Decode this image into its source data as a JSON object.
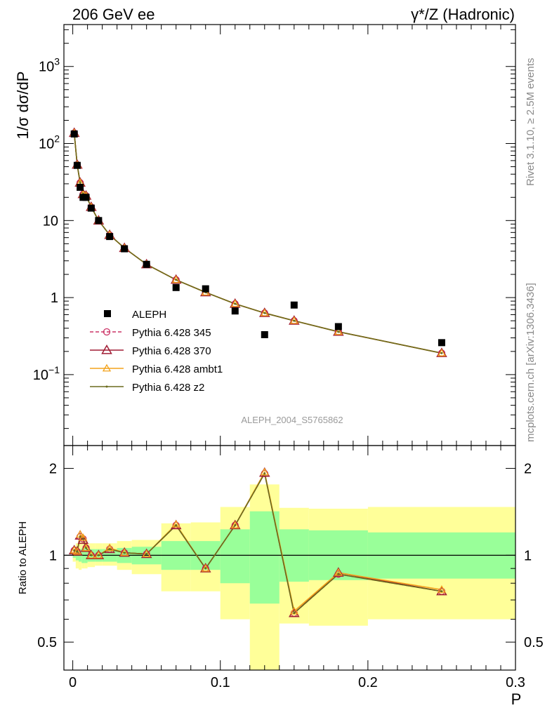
{
  "header": {
    "left": "206 GeV ee",
    "right": "γ*/Z (Hadronic)"
  },
  "side_labels": {
    "rivet": "Rivet 3.1.10, ≥ 2.5M events",
    "mcplots": "mcplots.cern.ch [arXiv:1306.3436]"
  },
  "analysis_id": "ALEPH_2004_S5765862",
  "colors": {
    "data": "#000000",
    "p345": "#cc3366",
    "p370": "#a01c34",
    "ambt1": "#f3a31c",
    "z2": "#6b6b1d",
    "band_stat": "#99ff99",
    "band_total": "#ffff99"
  },
  "chart_data": [
    {
      "type": "scatter",
      "title": "",
      "ylabel": "1/σ  dσ/dP",
      "ylabel_display": "1/σ  dσ/dP",
      "yscale": "log",
      "ylim": [
        0.012,
        3500
      ],
      "xlim": [
        -0.006,
        0.3
      ],
      "y_ticks": [
        {
          "value": 0.1,
          "label": "10",
          "exp": "−1"
        },
        {
          "value": 1,
          "label": "1",
          "exp": ""
        },
        {
          "value": 10,
          "label": "10",
          "exp": ""
        },
        {
          "value": 100,
          "label": "10",
          "exp": "2"
        },
        {
          "value": 1000,
          "label": "10",
          "exp": "3"
        }
      ],
      "legend_position": "lower-left",
      "legend": [
        {
          "key": "data",
          "label": "ALEPH"
        },
        {
          "key": "p345",
          "label": "Pythia 6.428 345"
        },
        {
          "key": "p370",
          "label": "Pythia 6.428 370"
        },
        {
          "key": "ambt1",
          "label": "Pythia 6.428 ambt1"
        },
        {
          "key": "z2",
          "label": "Pythia 6.428 z2"
        }
      ],
      "data_points": {
        "name": "ALEPH",
        "x": [
          0.001,
          0.003,
          0.005,
          0.007,
          0.009,
          0.0125,
          0.0175,
          0.025,
          0.035,
          0.05,
          0.07,
          0.09,
          0.11,
          0.13,
          0.15,
          0.18,
          0.25
        ],
        "y": [
          133,
          52,
          27,
          20,
          20,
          14.5,
          10,
          6.2,
          4.3,
          2.7,
          1.35,
          1.3,
          0.67,
          0.33,
          0.8,
          0.42,
          0.26
        ]
      },
      "series": [
        {
          "key": "p345",
          "name": "Pythia 6.428 345",
          "x": [
            0.001,
            0.003,
            0.005,
            0.007,
            0.009,
            0.0125,
            0.0175,
            0.025,
            0.035,
            0.05,
            0.07,
            0.09,
            0.11,
            0.13,
            0.15,
            0.18,
            0.25
          ],
          "y": [
            137,
            53,
            31,
            22,
            21,
            15,
            10,
            6.5,
            4.4,
            2.7,
            1.7,
            1.17,
            0.83,
            0.63,
            0.5,
            0.36,
            0.19
          ]
        },
        {
          "key": "p370",
          "name": "Pythia 6.428 370",
          "x": [
            0.001,
            0.003,
            0.005,
            0.007,
            0.009,
            0.0125,
            0.0175,
            0.025,
            0.035,
            0.05,
            0.07,
            0.09,
            0.11,
            0.13,
            0.15,
            0.18,
            0.25
          ],
          "y": [
            137,
            53,
            31,
            22,
            21,
            15,
            10,
            6.5,
            4.4,
            2.7,
            1.7,
            1.17,
            0.83,
            0.63,
            0.5,
            0.36,
            0.19
          ]
        },
        {
          "key": "ambt1",
          "name": "Pythia 6.428 ambt1",
          "x": [
            0.001,
            0.003,
            0.005,
            0.007,
            0.009,
            0.0125,
            0.0175,
            0.025,
            0.035,
            0.05,
            0.07,
            0.09,
            0.11,
            0.13,
            0.15,
            0.18,
            0.25
          ],
          "y": [
            137,
            53,
            31,
            22,
            21,
            15,
            10,
            6.5,
            4.4,
            2.7,
            1.7,
            1.17,
            0.83,
            0.63,
            0.5,
            0.36,
            0.19
          ]
        },
        {
          "key": "z2",
          "name": "Pythia 6.428 z2",
          "x": [
            0.001,
            0.003,
            0.005,
            0.007,
            0.009,
            0.0125,
            0.0175,
            0.025,
            0.035,
            0.05,
            0.07,
            0.09,
            0.11,
            0.13,
            0.15,
            0.18,
            0.25
          ],
          "y": [
            137,
            53,
            31,
            22,
            21,
            15,
            10,
            6.5,
            4.4,
            2.7,
            1.7,
            1.17,
            0.83,
            0.63,
            0.5,
            0.36,
            0.19
          ]
        }
      ]
    },
    {
      "type": "line",
      "ylabel": "Ratio to ALEPH",
      "xlabel": "P",
      "yscale": "log",
      "ylim": [
        0.4,
        2.4
      ],
      "xlim": [
        -0.006,
        0.3
      ],
      "y_ticks": [
        {
          "value": 0.5,
          "label": "0.5"
        },
        {
          "value": 1,
          "label": "1"
        },
        {
          "value": 2,
          "label": "2"
        }
      ],
      "x_ticks": [
        {
          "value": 0,
          "label": "0"
        },
        {
          "value": 0.1,
          "label": "0.1"
        },
        {
          "value": 0.2,
          "label": "0.2"
        },
        {
          "value": 0.3,
          "label": "0.3"
        }
      ],
      "bands": {
        "edges": [
          0,
          0.002,
          0.004,
          0.006,
          0.008,
          0.01,
          0.015,
          0.02,
          0.03,
          0.04,
          0.06,
          0.08,
          0.1,
          0.12,
          0.14,
          0.16,
          0.2,
          0.3
        ],
        "stat_lo": [
          0.98,
          0.96,
          0.95,
          0.94,
          0.94,
          0.95,
          0.95,
          0.95,
          0.94,
          0.93,
          0.89,
          0.89,
          0.8,
          0.68,
          0.81,
          0.82,
          0.83
        ],
        "stat_hi": [
          1.02,
          1.04,
          1.05,
          1.06,
          1.06,
          1.05,
          1.05,
          1.05,
          1.06,
          1.07,
          1.12,
          1.12,
          1.23,
          1.42,
          1.23,
          1.22,
          1.2
        ],
        "total_lo": [
          0.95,
          0.9,
          0.89,
          0.9,
          0.9,
          0.91,
          0.92,
          0.92,
          0.89,
          0.86,
          0.75,
          0.75,
          0.6,
          0.3,
          0.58,
          0.57,
          0.6
        ],
        "total_hi": [
          1.05,
          1.1,
          1.11,
          1.12,
          1.12,
          1.1,
          1.1,
          1.1,
          1.12,
          1.13,
          1.29,
          1.3,
          1.47,
          1.76,
          1.46,
          1.45,
          1.47
        ]
      },
      "series": [
        {
          "key": "p345",
          "name": "Pythia 6.428 345",
          "x": [
            0.001,
            0.003,
            0.005,
            0.007,
            0.009,
            0.0125,
            0.0175,
            0.025,
            0.035,
            0.05,
            0.07,
            0.09,
            0.11,
            0.13,
            0.15,
            0.18,
            0.25
          ],
          "y": [
            1.04,
            1.03,
            1.16,
            1.14,
            1.06,
            1.0,
            1.0,
            1.05,
            1.02,
            1.01,
            1.27,
            0.9,
            1.27,
            1.92,
            0.63,
            0.86,
            0.75
          ]
        },
        {
          "key": "p370",
          "name": "Pythia 6.428 370",
          "x": [
            0.001,
            0.003,
            0.005,
            0.007,
            0.009,
            0.0125,
            0.0175,
            0.025,
            0.035,
            0.05,
            0.07,
            0.09,
            0.11,
            0.13,
            0.15,
            0.18,
            0.25
          ],
          "y": [
            1.04,
            1.03,
            1.17,
            1.13,
            1.06,
            1.0,
            1.0,
            1.05,
            1.02,
            1.01,
            1.27,
            0.9,
            1.27,
            1.93,
            0.63,
            0.87,
            0.75
          ]
        },
        {
          "key": "ambt1",
          "name": "Pythia 6.428 ambt1",
          "x": [
            0.001,
            0.003,
            0.005,
            0.007,
            0.009,
            0.0125,
            0.0175,
            0.025,
            0.035,
            0.05,
            0.07,
            0.09,
            0.11,
            0.13,
            0.15,
            0.18,
            0.25
          ],
          "y": [
            1.04,
            1.03,
            1.18,
            1.15,
            1.06,
            1.0,
            1.0,
            1.06,
            1.02,
            1.01,
            1.28,
            0.9,
            1.27,
            1.94,
            0.64,
            0.87,
            0.76
          ]
        },
        {
          "key": "z2",
          "name": "Pythia 6.428 z2",
          "x": [
            0.001,
            0.003,
            0.005,
            0.007,
            0.009,
            0.0125,
            0.0175,
            0.025,
            0.035,
            0.05,
            0.07,
            0.09,
            0.11,
            0.13,
            0.15,
            0.18,
            0.25
          ],
          "y": [
            1.04,
            1.03,
            1.16,
            1.14,
            1.06,
            1.0,
            1.0,
            1.05,
            1.02,
            1.01,
            1.27,
            0.9,
            1.27,
            1.92,
            0.63,
            0.86,
            0.75
          ]
        }
      ]
    }
  ]
}
